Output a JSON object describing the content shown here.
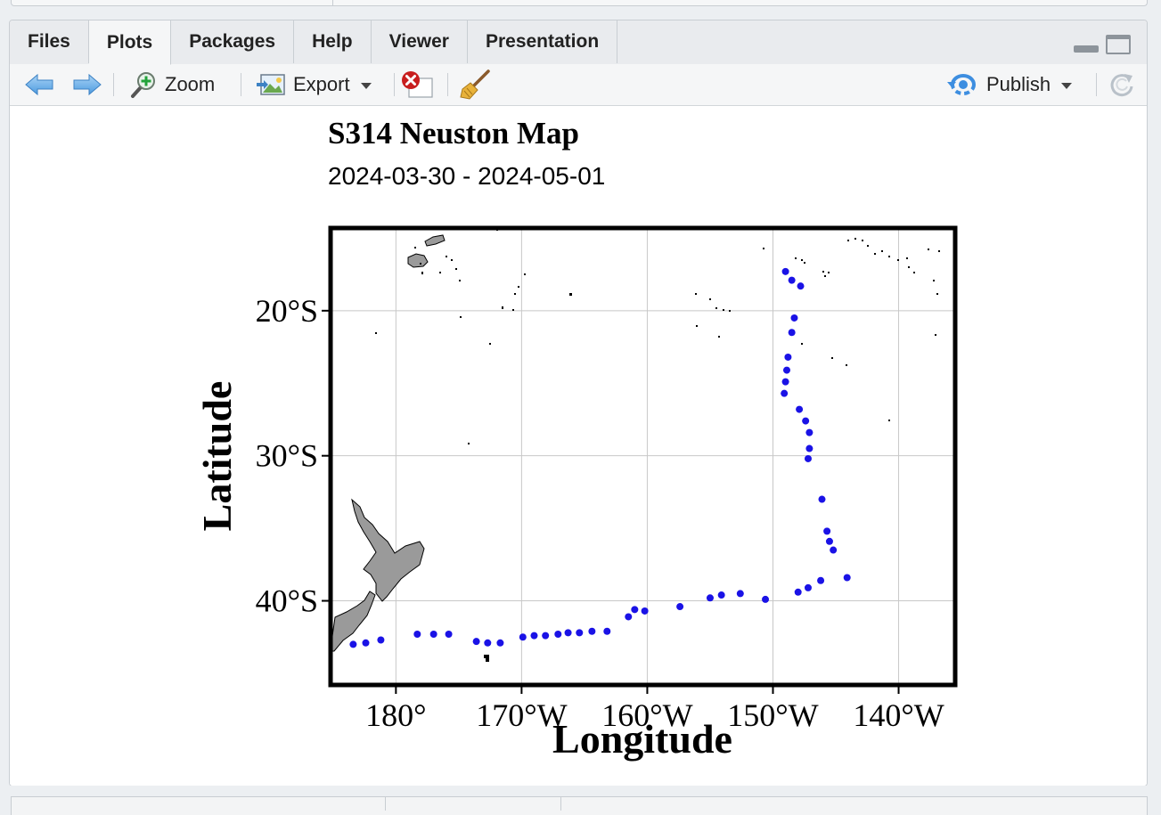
{
  "tabs": [
    {
      "label": "Files"
    },
    {
      "label": "Plots"
    },
    {
      "label": "Packages"
    },
    {
      "label": "Help"
    },
    {
      "label": "Viewer"
    },
    {
      "label": "Presentation"
    }
  ],
  "active_tab": "Plots",
  "toolbar": {
    "zoom_label": "Zoom",
    "export_label": "Export",
    "publish_label": "Publish"
  },
  "colors": {
    "point": "#1a12e6",
    "land": "#9a9a9a",
    "grid": "#c8c8c8",
    "frame": "#000000"
  },
  "chart_data": {
    "type": "scatter",
    "title": "S314 Neuston Map",
    "subtitle": "2024-03-30 - 2024-05-01",
    "xlabel": "Longitude",
    "ylabel": "Latitude",
    "x_ticks": [
      {
        "value": 180,
        "label": "180°"
      },
      {
        "value": 190,
        "label": "170°W"
      },
      {
        "value": 200,
        "label": "160°W"
      },
      {
        "value": 210,
        "label": "150°W"
      },
      {
        "value": 220,
        "label": "140°W"
      }
    ],
    "y_ticks": [
      {
        "value": -20,
        "label": "20°S"
      },
      {
        "value": -30,
        "label": "30°S"
      },
      {
        "value": -40,
        "label": "40°S"
      }
    ],
    "xlim": [
      174.8,
      224.5
    ],
    "ylim": [
      -45.8,
      -14.3
    ],
    "grid": true,
    "points": [
      [
        211.0,
        -17.3
      ],
      [
        211.5,
        -17.9
      ],
      [
        212.2,
        -18.3
      ],
      [
        211.7,
        -20.5
      ],
      [
        211.5,
        -21.5
      ],
      [
        211.2,
        -23.2
      ],
      [
        211.1,
        -24.1
      ],
      [
        211.0,
        -24.9
      ],
      [
        210.9,
        -25.7
      ],
      [
        212.1,
        -26.8
      ],
      [
        212.6,
        -27.6
      ],
      [
        212.9,
        -28.4
      ],
      [
        212.9,
        -29.5
      ],
      [
        212.8,
        -30.2
      ],
      [
        213.9,
        -33.0
      ],
      [
        214.3,
        -35.2
      ],
      [
        214.5,
        -35.9
      ],
      [
        214.8,
        -36.5
      ],
      [
        215.9,
        -38.4
      ],
      [
        213.8,
        -38.6
      ],
      [
        212.8,
        -39.1
      ],
      [
        212.0,
        -39.4
      ],
      [
        209.4,
        -39.9
      ],
      [
        207.4,
        -39.5
      ],
      [
        205.9,
        -39.6
      ],
      [
        205.0,
        -39.8
      ],
      [
        202.6,
        -40.4
      ],
      [
        199.8,
        -40.7
      ],
      [
        199.0,
        -40.6
      ],
      [
        198.5,
        -41.1
      ],
      [
        196.8,
        -42.1
      ],
      [
        195.6,
        -42.1
      ],
      [
        194.6,
        -42.2
      ],
      [
        193.7,
        -42.2
      ],
      [
        192.9,
        -42.3
      ],
      [
        191.9,
        -42.4
      ],
      [
        191.0,
        -42.4
      ],
      [
        190.1,
        -42.5
      ],
      [
        188.3,
        -42.9
      ],
      [
        187.3,
        -42.9
      ],
      [
        186.4,
        -42.8
      ],
      [
        184.2,
        -42.3
      ],
      [
        183.0,
        -42.3
      ],
      [
        181.7,
        -42.3
      ],
      [
        178.8,
        -42.7
      ],
      [
        177.6,
        -42.9
      ],
      [
        176.6,
        -43.0
      ]
    ]
  }
}
